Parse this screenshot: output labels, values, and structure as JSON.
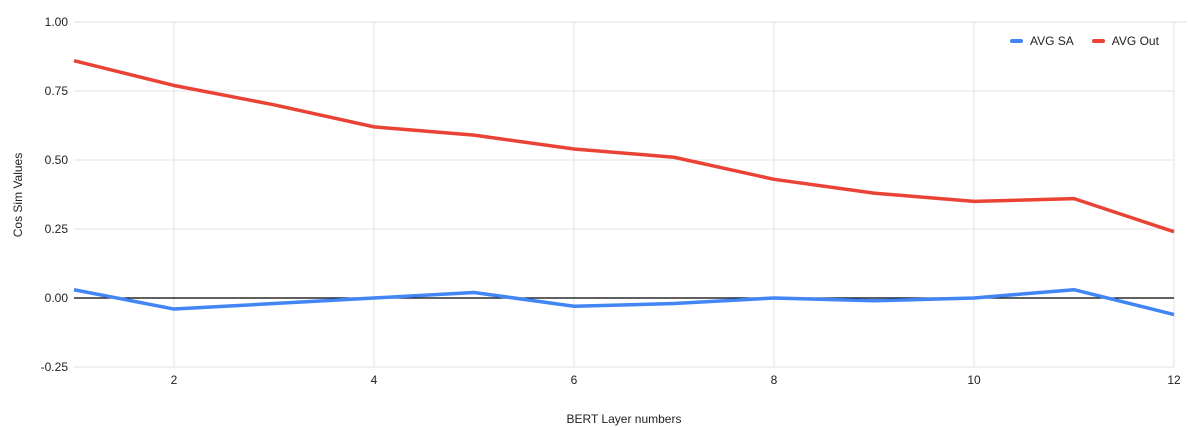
{
  "colors": {
    "background": "#ffffff",
    "gridline": "#e0e0e0",
    "zero_line": "#000000",
    "tick_text": "#1f1f1f",
    "axis_title_text": "#1f1f1f",
    "legend_text": "#1f1f1f",
    "series_blue": "#4285f4",
    "series_red": "#ea4335"
  },
  "chart_data": {
    "type": "line",
    "title": "",
    "xlabel": "BERT Layer numbers",
    "ylabel": "Cos Sim Values",
    "x": [
      1,
      2,
      3,
      4,
      5,
      6,
      7,
      8,
      9,
      10,
      11,
      12
    ],
    "xlim": [
      1,
      12
    ],
    "ylim": [
      -0.25,
      1.0
    ],
    "xticks": [
      2,
      4,
      6,
      8,
      10,
      12
    ],
    "xtick_labels": [
      "2",
      "4",
      "6",
      "8",
      "10",
      "12"
    ],
    "yticks": [
      1.0,
      0.75,
      0.5,
      0.25,
      0.0,
      -0.25
    ],
    "ytick_labels": [
      "1.00",
      "0.75",
      "0.50",
      "0.25",
      "0.00",
      "-0.25"
    ],
    "grid": true,
    "legend_position": "top-right",
    "series": [
      {
        "name": "AVG SA",
        "color": "#4285f4",
        "values": [
          0.03,
          -0.04,
          -0.02,
          0.0,
          0.02,
          -0.03,
          -0.02,
          0.0,
          -0.01,
          0.0,
          0.03,
          -0.06
        ]
      },
      {
        "name": "AVG Out",
        "color": "#ea4335",
        "values": [
          0.86,
          0.77,
          0.7,
          0.62,
          0.59,
          0.54,
          0.51,
          0.43,
          0.38,
          0.35,
          0.36,
          0.24
        ]
      }
    ]
  }
}
